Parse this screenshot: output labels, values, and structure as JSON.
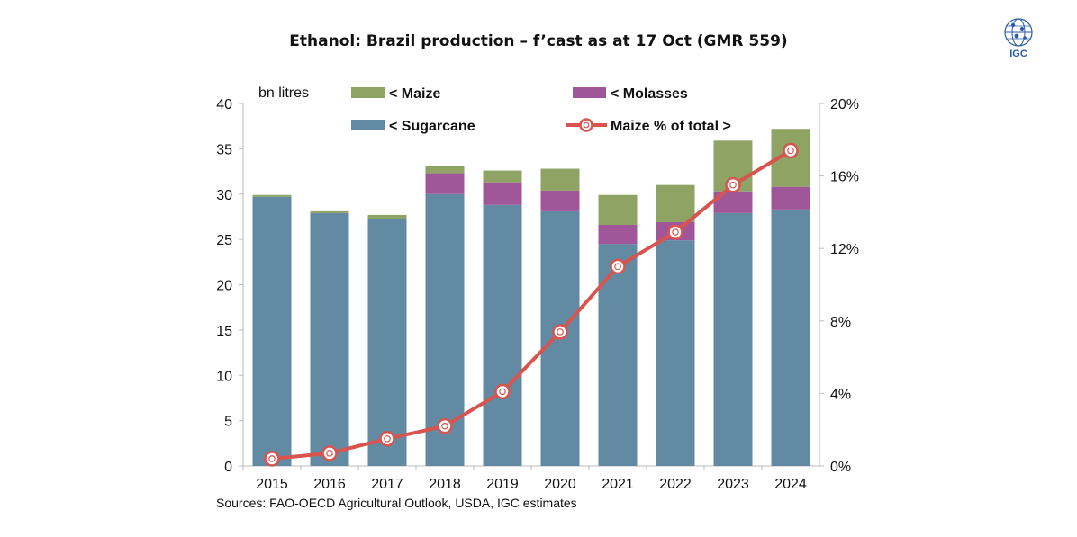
{
  "title": "Ethanol: Brazil production – f’cast as at 17 Oct (GMR 559)",
  "logo": {
    "text": "IGC",
    "icon": "globe-icon"
  },
  "source": "Sources: FAO-OECD Agricultural Outlook, USDA, IGC estimates",
  "colors": {
    "sugarcane": "#628BA3",
    "molasses": "#A0579A",
    "maize": "#8EA364",
    "line": "#D9534F"
  },
  "chart_data": {
    "type": "bar",
    "stacked": true,
    "title": "Ethanol: Brazil production – f’cast as at 17 Oct (GMR 559)",
    "ylabel": "bn litres",
    "ylabel_right": "Maize % of total >",
    "categories": [
      "2015",
      "2016",
      "2017",
      "2018",
      "2019",
      "2020",
      "2021",
      "2022",
      "2023",
      "2024"
    ],
    "ylim": [
      0,
      40
    ],
    "yticks": [
      "0",
      "5",
      "10",
      "15",
      "20",
      "25",
      "30",
      "35",
      "40"
    ],
    "y2lim": [
      0,
      20
    ],
    "y2ticks": [
      "0%",
      "4%",
      "8%",
      "12%",
      "16%",
      "20%"
    ],
    "series": [
      {
        "name": "< Sugarcane",
        "type": "bar",
        "values": [
          29.7,
          27.9,
          27.2,
          30.0,
          28.8,
          28.1,
          24.5,
          24.9,
          27.9,
          28.3
        ]
      },
      {
        "name": "< Molasses",
        "type": "bar",
        "values": [
          0.0,
          0.0,
          0.0,
          2.3,
          2.5,
          2.3,
          2.1,
          2.0,
          2.4,
          2.5
        ]
      },
      {
        "name": "< Maize",
        "type": "bar",
        "values": [
          0.2,
          0.2,
          0.5,
          0.8,
          1.3,
          2.4,
          3.3,
          4.1,
          5.6,
          6.4
        ]
      },
      {
        "name": "Maize % of total >",
        "type": "line",
        "axis": "right",
        "values": [
          0.4,
          0.7,
          1.5,
          2.2,
          4.1,
          7.4,
          11.0,
          12.9,
          15.5,
          17.4
        ]
      }
    ],
    "legend": [
      {
        "label": "< Maize",
        "color": "#8EA364",
        "kind": "box"
      },
      {
        "label": "< Molasses",
        "color": "#A0579A",
        "kind": "box"
      },
      {
        "label": "< Sugarcane",
        "color": "#628BA3",
        "kind": "box"
      },
      {
        "label": "Maize % of total >",
        "color": "#D9534F",
        "kind": "line"
      }
    ],
    "legend_position": "top"
  }
}
